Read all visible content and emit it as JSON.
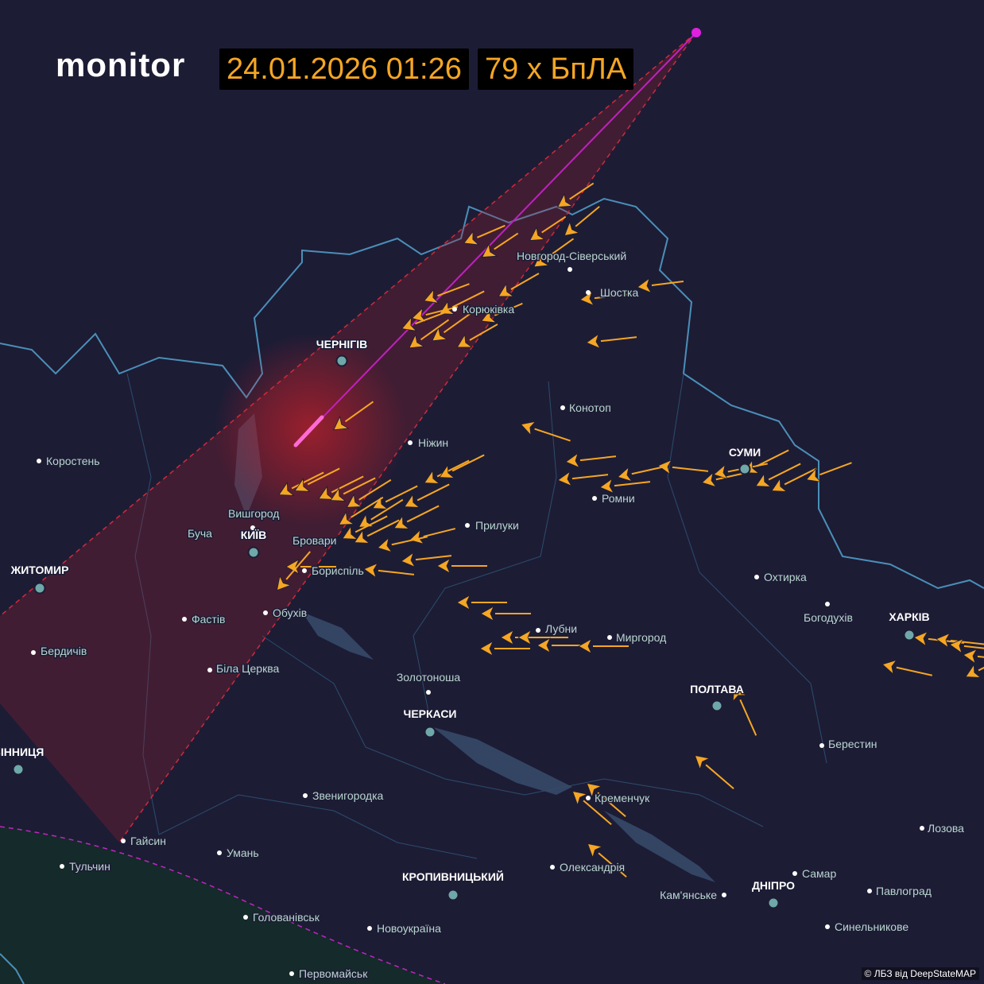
{
  "header": {
    "logo": "monitor",
    "timestamp": "24.01.2026 01:26",
    "count": "79 х БпЛА"
  },
  "cities": [
    {
      "label": "Новгород-Сіверський",
      "major": false
    },
    {
      "label": "Шостка",
      "major": false
    },
    {
      "label": "Корюківка",
      "major": false
    },
    {
      "label": "ЧЕРНІГІВ",
      "major": true
    },
    {
      "label": "Конотоп",
      "major": false
    },
    {
      "label": "Ніжин",
      "major": false
    },
    {
      "label": "Коростень",
      "major": false
    },
    {
      "label": "СУМИ",
      "major": true
    },
    {
      "label": "Ромни",
      "major": false
    },
    {
      "label": "Вишгород",
      "major": false
    },
    {
      "label": "Прилуки",
      "major": false
    },
    {
      "label": "Буча",
      "major": false
    },
    {
      "label": "КИЇВ",
      "major": true
    },
    {
      "label": "Бровари",
      "major": false
    },
    {
      "label": "ЖИТОМИР",
      "major": true
    },
    {
      "label": "Бориспіль",
      "major": false
    },
    {
      "label": "Охтирка",
      "major": false
    },
    {
      "label": "Обухів",
      "major": false
    },
    {
      "label": "Фастів",
      "major": false
    },
    {
      "label": "Богодухів",
      "major": false
    },
    {
      "label": "ХАРКІВ",
      "major": true
    },
    {
      "label": "Лубни",
      "major": false
    },
    {
      "label": "Миргород",
      "major": false
    },
    {
      "label": "Бердичів",
      "major": false
    },
    {
      "label": "Біла Церква",
      "major": false
    },
    {
      "label": "Золотоноша",
      "major": false
    },
    {
      "label": "ПОЛТАВА",
      "major": true
    },
    {
      "label": "ЧЕРКАСИ",
      "major": true
    },
    {
      "label": "Берестин",
      "major": false
    },
    {
      "label": "ВІННИЦЯ",
      "major": true
    },
    {
      "label": "Звенигородка",
      "major": false
    },
    {
      "label": "Кременчук",
      "major": false
    },
    {
      "label": "Лозова",
      "major": false
    },
    {
      "label": "Гайсин",
      "major": false
    },
    {
      "label": "Умань",
      "major": false
    },
    {
      "label": "Тульчин",
      "major": false
    },
    {
      "label": "Олександрія",
      "major": false
    },
    {
      "label": "Самар",
      "major": false
    },
    {
      "label": "КРОПИВНИЦЬКИЙ",
      "major": true
    },
    {
      "label": "ДНІПРО",
      "major": true
    },
    {
      "label": "Павлоград",
      "major": false
    },
    {
      "label": "Кам'янське",
      "major": false
    },
    {
      "label": "Голованівськ",
      "major": false
    },
    {
      "label": "Синельникове",
      "major": false
    },
    {
      "label": "Новоукраїна",
      "major": false
    },
    {
      "label": "Первомайськ",
      "major": false
    }
  ],
  "attribution": "© ЛБЗ від DeepStateMAP"
}
